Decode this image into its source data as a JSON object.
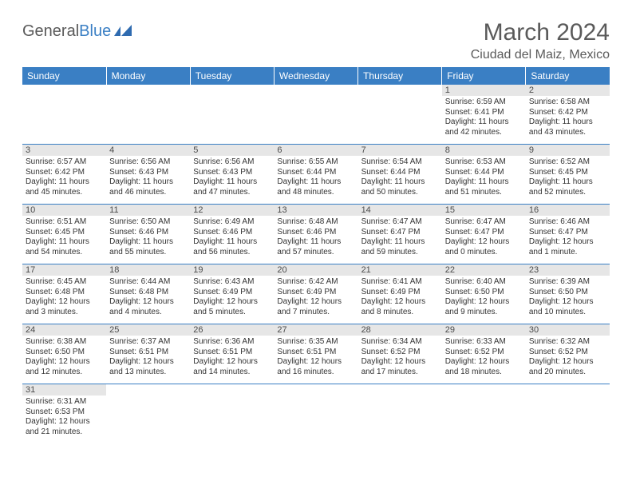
{
  "logo": {
    "part1": "General",
    "part2": "Blue"
  },
  "title": "March 2024",
  "location": "Ciudad del Maiz, Mexico",
  "colors": {
    "header_bg": "#3a7fc4",
    "header_text": "#ffffff",
    "daynum_bg": "#e6e6e6",
    "cell_border": "#3a7fc4",
    "body_text": "#333333",
    "title_text": "#5a5a5a"
  },
  "typography": {
    "title_fontsize": 30,
    "location_fontsize": 16,
    "header_fontsize": 12,
    "cell_fontsize": 10
  },
  "weekdays": [
    "Sunday",
    "Monday",
    "Tuesday",
    "Wednesday",
    "Thursday",
    "Friday",
    "Saturday"
  ],
  "weeks": [
    [
      null,
      null,
      null,
      null,
      null,
      {
        "d": "1",
        "sr": "Sunrise: 6:59 AM",
        "ss": "Sunset: 6:41 PM",
        "dl": "Daylight: 11 hours and 42 minutes."
      },
      {
        "d": "2",
        "sr": "Sunrise: 6:58 AM",
        "ss": "Sunset: 6:42 PM",
        "dl": "Daylight: 11 hours and 43 minutes."
      }
    ],
    [
      {
        "d": "3",
        "sr": "Sunrise: 6:57 AM",
        "ss": "Sunset: 6:42 PM",
        "dl": "Daylight: 11 hours and 45 minutes."
      },
      {
        "d": "4",
        "sr": "Sunrise: 6:56 AM",
        "ss": "Sunset: 6:43 PM",
        "dl": "Daylight: 11 hours and 46 minutes."
      },
      {
        "d": "5",
        "sr": "Sunrise: 6:56 AM",
        "ss": "Sunset: 6:43 PM",
        "dl": "Daylight: 11 hours and 47 minutes."
      },
      {
        "d": "6",
        "sr": "Sunrise: 6:55 AM",
        "ss": "Sunset: 6:44 PM",
        "dl": "Daylight: 11 hours and 48 minutes."
      },
      {
        "d": "7",
        "sr": "Sunrise: 6:54 AM",
        "ss": "Sunset: 6:44 PM",
        "dl": "Daylight: 11 hours and 50 minutes."
      },
      {
        "d": "8",
        "sr": "Sunrise: 6:53 AM",
        "ss": "Sunset: 6:44 PM",
        "dl": "Daylight: 11 hours and 51 minutes."
      },
      {
        "d": "9",
        "sr": "Sunrise: 6:52 AM",
        "ss": "Sunset: 6:45 PM",
        "dl": "Daylight: 11 hours and 52 minutes."
      }
    ],
    [
      {
        "d": "10",
        "sr": "Sunrise: 6:51 AM",
        "ss": "Sunset: 6:45 PM",
        "dl": "Daylight: 11 hours and 54 minutes."
      },
      {
        "d": "11",
        "sr": "Sunrise: 6:50 AM",
        "ss": "Sunset: 6:46 PM",
        "dl": "Daylight: 11 hours and 55 minutes."
      },
      {
        "d": "12",
        "sr": "Sunrise: 6:49 AM",
        "ss": "Sunset: 6:46 PM",
        "dl": "Daylight: 11 hours and 56 minutes."
      },
      {
        "d": "13",
        "sr": "Sunrise: 6:48 AM",
        "ss": "Sunset: 6:46 PM",
        "dl": "Daylight: 11 hours and 57 minutes."
      },
      {
        "d": "14",
        "sr": "Sunrise: 6:47 AM",
        "ss": "Sunset: 6:47 PM",
        "dl": "Daylight: 11 hours and 59 minutes."
      },
      {
        "d": "15",
        "sr": "Sunrise: 6:47 AM",
        "ss": "Sunset: 6:47 PM",
        "dl": "Daylight: 12 hours and 0 minutes."
      },
      {
        "d": "16",
        "sr": "Sunrise: 6:46 AM",
        "ss": "Sunset: 6:47 PM",
        "dl": "Daylight: 12 hours and 1 minute."
      }
    ],
    [
      {
        "d": "17",
        "sr": "Sunrise: 6:45 AM",
        "ss": "Sunset: 6:48 PM",
        "dl": "Daylight: 12 hours and 3 minutes."
      },
      {
        "d": "18",
        "sr": "Sunrise: 6:44 AM",
        "ss": "Sunset: 6:48 PM",
        "dl": "Daylight: 12 hours and 4 minutes."
      },
      {
        "d": "19",
        "sr": "Sunrise: 6:43 AM",
        "ss": "Sunset: 6:49 PM",
        "dl": "Daylight: 12 hours and 5 minutes."
      },
      {
        "d": "20",
        "sr": "Sunrise: 6:42 AM",
        "ss": "Sunset: 6:49 PM",
        "dl": "Daylight: 12 hours and 7 minutes."
      },
      {
        "d": "21",
        "sr": "Sunrise: 6:41 AM",
        "ss": "Sunset: 6:49 PM",
        "dl": "Daylight: 12 hours and 8 minutes."
      },
      {
        "d": "22",
        "sr": "Sunrise: 6:40 AM",
        "ss": "Sunset: 6:50 PM",
        "dl": "Daylight: 12 hours and 9 minutes."
      },
      {
        "d": "23",
        "sr": "Sunrise: 6:39 AM",
        "ss": "Sunset: 6:50 PM",
        "dl": "Daylight: 12 hours and 10 minutes."
      }
    ],
    [
      {
        "d": "24",
        "sr": "Sunrise: 6:38 AM",
        "ss": "Sunset: 6:50 PM",
        "dl": "Daylight: 12 hours and 12 minutes."
      },
      {
        "d": "25",
        "sr": "Sunrise: 6:37 AM",
        "ss": "Sunset: 6:51 PM",
        "dl": "Daylight: 12 hours and 13 minutes."
      },
      {
        "d": "26",
        "sr": "Sunrise: 6:36 AM",
        "ss": "Sunset: 6:51 PM",
        "dl": "Daylight: 12 hours and 14 minutes."
      },
      {
        "d": "27",
        "sr": "Sunrise: 6:35 AM",
        "ss": "Sunset: 6:51 PM",
        "dl": "Daylight: 12 hours and 16 minutes."
      },
      {
        "d": "28",
        "sr": "Sunrise: 6:34 AM",
        "ss": "Sunset: 6:52 PM",
        "dl": "Daylight: 12 hours and 17 minutes."
      },
      {
        "d": "29",
        "sr": "Sunrise: 6:33 AM",
        "ss": "Sunset: 6:52 PM",
        "dl": "Daylight: 12 hours and 18 minutes."
      },
      {
        "d": "30",
        "sr": "Sunrise: 6:32 AM",
        "ss": "Sunset: 6:52 PM",
        "dl": "Daylight: 12 hours and 20 minutes."
      }
    ],
    [
      {
        "d": "31",
        "sr": "Sunrise: 6:31 AM",
        "ss": "Sunset: 6:53 PM",
        "dl": "Daylight: 12 hours and 21 minutes."
      },
      null,
      null,
      null,
      null,
      null,
      null
    ]
  ]
}
